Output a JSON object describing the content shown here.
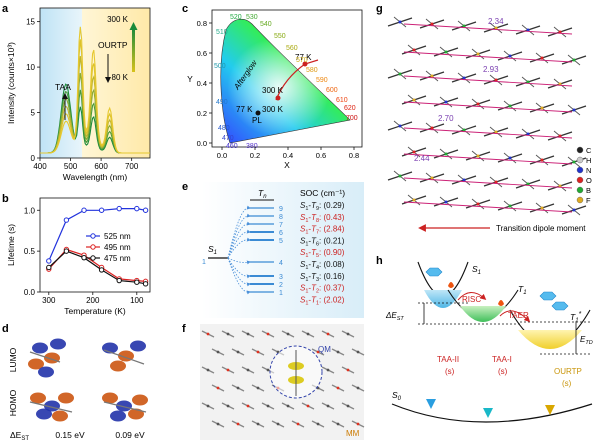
{
  "panels": {
    "a": {
      "letter": "a",
      "ylabel": "Intensity (counts×10³)",
      "xlabel": "Wavelength (nm)",
      "xticks": [
        "400",
        "500",
        "600",
        "700"
      ],
      "yticks": [
        "0",
        "5",
        "10",
        "15"
      ],
      "band_left": "TAA",
      "band_right": "OURTP",
      "temp_top": "300 K",
      "temp_bottom": "80 K"
    },
    "b": {
      "letter": "b",
      "ylabel": "Lifetime (s)",
      "xlabel": "Temperature (K)",
      "xticks": [
        "300",
        "200",
        "100"
      ],
      "yticks": [
        "0.0",
        "0.5",
        "1.0"
      ],
      "legend": [
        "525 nm",
        "495 nm",
        "475 nm"
      ],
      "colors": [
        "#2233dd",
        "#dd2222",
        "#111111"
      ]
    },
    "c": {
      "letter": "c",
      "ylabel": "Y",
      "xlabel": "X",
      "xticks": [
        "0.0",
        "0.2",
        "0.4",
        "0.6",
        "0.8"
      ],
      "yticks": [
        "0.0",
        "0.2",
        "0.4",
        "0.6",
        "0.8"
      ],
      "afterglow": "Afterglow",
      "pl": "PL",
      "t77a": "77 K",
      "t300a": "300 K",
      "t77b": "77 K",
      "t300b": "300 K",
      "wavelengths": [
        "520",
        "530",
        "540",
        "510",
        "550",
        "560",
        "500",
        "570",
        "580",
        "590",
        "600",
        "610",
        "620",
        "700",
        "490",
        "480",
        "470",
        "460",
        "380"
      ]
    },
    "d": {
      "letter": "d",
      "lumo": "LUMO",
      "homo": "HOMO",
      "dest": "ΔE",
      "dest_sub": "ST",
      "val1": "0.15 eV",
      "val2": "0.09 eV"
    },
    "e": {
      "letter": "e",
      "tn": "T",
      "tn_sub": "n",
      "s1": "S",
      "s1_sub": "1",
      "soc_header": "SOC (cm⁻¹)",
      "levels": [
        "9",
        "8",
        "7",
        "6",
        "5",
        "4",
        "3",
        "2",
        "1"
      ],
      "s1_level": "1",
      "soc": [
        {
          "n": "9",
          "val": "(0.29)",
          "hot": false
        },
        {
          "n": "8",
          "val": "(0.43)",
          "hot": true
        },
        {
          "n": "7",
          "val": "(2.84)",
          "hot": true
        },
        {
          "n": "6",
          "val": "(0.21)",
          "hot": false
        },
        {
          "n": "5",
          "val": "(0.90)",
          "hot": true
        },
        {
          "n": "4",
          "val": "(0.08)",
          "hot": false
        },
        {
          "n": "3",
          "val": "(0.16)",
          "hot": false
        },
        {
          "n": "2",
          "val": "(0.37)",
          "hot": true
        },
        {
          "n": "1",
          "val": "(2.02)",
          "hot": true
        }
      ]
    },
    "f": {
      "letter": "f",
      "qm": "QM",
      "mm": "MM"
    },
    "g": {
      "letter": "g",
      "distances": [
        "2.34",
        "2.93",
        "2.70",
        "2.44"
      ],
      "legend": [
        {
          "el": "C",
          "color": "#222222"
        },
        {
          "el": "H",
          "color": "#cccccc"
        },
        {
          "el": "N",
          "color": "#2233cc"
        },
        {
          "el": "O",
          "color": "#dd2222"
        },
        {
          "el": "B",
          "color": "#22aa33"
        },
        {
          "el": "F",
          "color": "#ddaa22"
        }
      ],
      "tdm": "Transition dipole moment"
    },
    "h": {
      "letter": "h",
      "s1": "S",
      "s1_sub": "1",
      "t1": "T",
      "t1_sub": "1",
      "t1s": "T",
      "t1s_sub": "1",
      "t1s_sup": "*",
      "s0": "S",
      "s0_sub": "0",
      "risc": "RISC",
      "taer": "TAER",
      "dest": "ΔE",
      "dest_sub": "ST",
      "etd": "E",
      "etd_sub": "TD",
      "taa2": "TAA-II",
      "taa1": "TAA-I",
      "ourtp": "OURTP",
      "s_unit": "(s)"
    }
  }
}
